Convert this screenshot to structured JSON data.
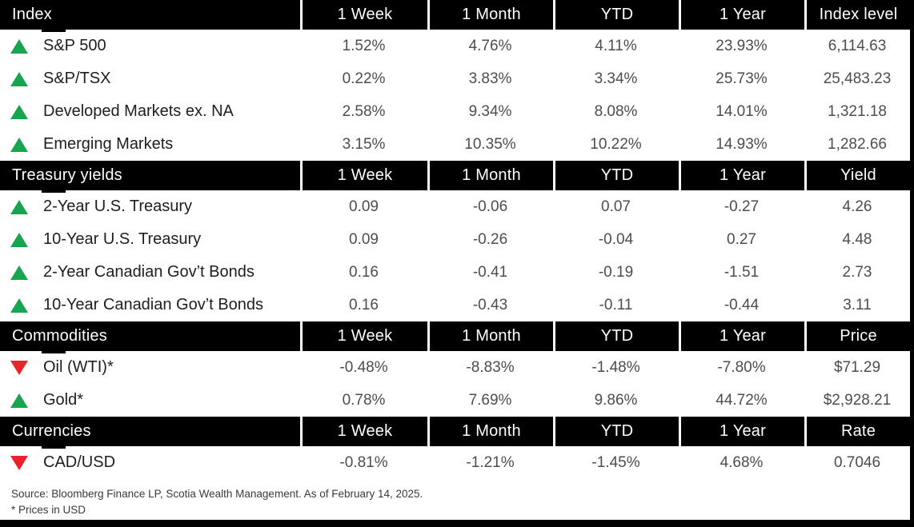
{
  "colors": {
    "up": "#17a54f",
    "down": "#e8232a",
    "bar": "#000000"
  },
  "chart_data": {
    "type": "table",
    "columns": [
      "1 Week",
      "1 Month",
      "YTD",
      "1 Year"
    ],
    "sections": [
      {
        "title": "Index",
        "value_header": "Index level",
        "rows": [
          {
            "direction": "up",
            "label": "S&P 500",
            "values": [
              "1.52%",
              "4.76%",
              "4.11%",
              "23.93%"
            ],
            "level": "6,114.63"
          },
          {
            "direction": "up",
            "label": "S&P/TSX",
            "values": [
              "0.22%",
              "3.83%",
              "3.34%",
              "25.73%"
            ],
            "level": "25,483.23"
          },
          {
            "direction": "up",
            "label": "Developed Markets ex. NA",
            "values": [
              "2.58%",
              "9.34%",
              "8.08%",
              "14.01%"
            ],
            "level": "1,321.18"
          },
          {
            "direction": "up",
            "label": "Emerging Markets",
            "values": [
              "3.15%",
              "10.35%",
              "10.22%",
              "14.93%"
            ],
            "level": "1,282.66"
          }
        ]
      },
      {
        "title": "Treasury yields",
        "value_header": "Yield",
        "rows": [
          {
            "direction": "up",
            "label": "2-Year U.S. Treasury",
            "values": [
              "0.09",
              "-0.06",
              "0.07",
              "-0.27"
            ],
            "level": "4.26"
          },
          {
            "direction": "up",
            "label": "10-Year U.S. Treasury",
            "values": [
              "0.09",
              "-0.26",
              "-0.04",
              "0.27"
            ],
            "level": "4.48"
          },
          {
            "direction": "up",
            "label": "2-Year Canadian Gov’t Bonds",
            "values": [
              "0.16",
              "-0.41",
              "-0.19",
              "-1.51"
            ],
            "level": "2.73"
          },
          {
            "direction": "up",
            "label": "10-Year Canadian Gov’t Bonds",
            "values": [
              "0.16",
              "-0.43",
              "-0.11",
              "-0.44"
            ],
            "level": "3.11"
          }
        ]
      },
      {
        "title": "Commodities",
        "value_header": "Price",
        "rows": [
          {
            "direction": "down",
            "label": "Oil (WTI)*",
            "values": [
              "-0.48%",
              "-8.83%",
              "-1.48%",
              "-7.80%"
            ],
            "level": "$71.29"
          },
          {
            "direction": "up",
            "label": "Gold*",
            "values": [
              "0.78%",
              "7.69%",
              "9.86%",
              "44.72%"
            ],
            "level": "$2,928.21"
          }
        ]
      },
      {
        "title": "Currencies",
        "value_header": "Rate",
        "rows": [
          {
            "direction": "down",
            "label": "CAD/USD",
            "values": [
              "-0.81%",
              "-1.21%",
              "-1.45%",
              "4.68%"
            ],
            "level": "0.7046"
          }
        ]
      }
    ]
  },
  "footer": {
    "source": "Source: Bloomberg Finance LP, Scotia Wealth Management. As of February 14, 2025.",
    "note": "* Prices in USD"
  }
}
